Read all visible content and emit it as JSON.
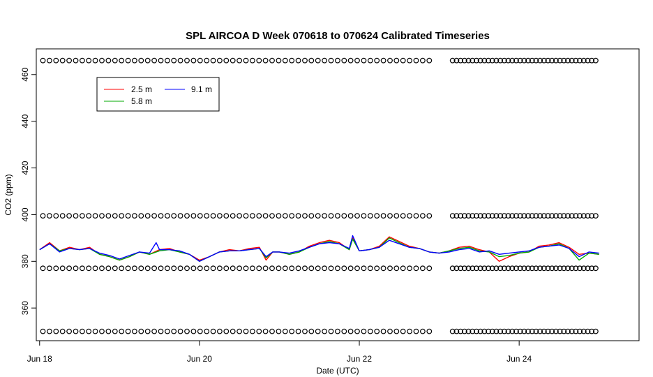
{
  "chart_data": {
    "type": "line",
    "title": "SPL AIRCOA D  Week 070618 to 070624  Calibrated Timeseries",
    "xlabel": "Date (UTC)",
    "ylabel": "CO2 (ppm)",
    "xlim": [
      "2007-06-17 23:00",
      "2007-06-25 12:00"
    ],
    "ylim": [
      346,
      471
    ],
    "x_ticks": [
      {
        "label": "Jun 18",
        "x": "2007-06-18"
      },
      {
        "label": "Jun 20",
        "x": "2007-06-20"
      },
      {
        "label": "Jun 22",
        "x": "2007-06-22"
      },
      {
        "label": "Jun 24",
        "x": "2007-06-24"
      }
    ],
    "y_ticks": [
      360,
      380,
      400,
      420,
      440,
      460
    ],
    "grid": false,
    "legend": {
      "placement": "top-left",
      "entries": [
        {
          "name": "2.5 m",
          "color": "#ff0000"
        },
        {
          "name": "5.8 m",
          "color": "#00aa00"
        },
        {
          "name": "9.1 m",
          "color": "#0000ff"
        }
      ]
    },
    "series": [
      {
        "name": "2.5 m",
        "color": "#ff0000",
        "points": [
          [
            "2007-06-18 00:00",
            385.0
          ],
          [
            "2007-06-18 03:00",
            388.0
          ],
          [
            "2007-06-18 06:00",
            384.5
          ],
          [
            "2007-06-18 09:00",
            386.0
          ],
          [
            "2007-06-18 12:00",
            385.0
          ],
          [
            "2007-06-18 15:00",
            386.0
          ],
          [
            "2007-06-18 18:00",
            383.0
          ],
          [
            "2007-06-18 21:00",
            382.0
          ],
          [
            "2007-06-19 00:00",
            380.5
          ],
          [
            "2007-06-19 03:00",
            382.0
          ],
          [
            "2007-06-19 06:00",
            384.0
          ],
          [
            "2007-06-19 09:00",
            383.0
          ],
          [
            "2007-06-19 12:00",
            385.0
          ],
          [
            "2007-06-19 15:00",
            385.5
          ],
          [
            "2007-06-19 18:00",
            384.0
          ],
          [
            "2007-06-19 21:00",
            383.0
          ],
          [
            "2007-06-20 00:00",
            380.5
          ],
          [
            "2007-06-20 03:00",
            382.0
          ],
          [
            "2007-06-20 06:00",
            384.0
          ],
          [
            "2007-06-20 09:00",
            385.0
          ],
          [
            "2007-06-20 12:00",
            384.5
          ],
          [
            "2007-06-20 15:00",
            385.5
          ],
          [
            "2007-06-20 18:00",
            386.0
          ],
          [
            "2007-06-20 20:00",
            380.5
          ],
          [
            "2007-06-20 22:00",
            384.0
          ],
          [
            "2007-06-21 00:00",
            384.0
          ],
          [
            "2007-06-21 03:00",
            383.0
          ],
          [
            "2007-06-21 06:00",
            384.0
          ],
          [
            "2007-06-21 09:00",
            386.5
          ],
          [
            "2007-06-21 12:00",
            388.0
          ],
          [
            "2007-06-21 15:00",
            389.0
          ],
          [
            "2007-06-21 18:00",
            388.0
          ],
          [
            "2007-06-21 21:00",
            385.0
          ],
          [
            "2007-06-21 22:00",
            390.0
          ],
          [
            "2007-06-22 00:00",
            384.5
          ],
          [
            "2007-06-22 03:00",
            385.0
          ],
          [
            "2007-06-22 06:00",
            386.5
          ],
          [
            "2007-06-22 09:00",
            390.5
          ],
          [
            "2007-06-22 12:00",
            388.5
          ],
          [
            "2007-06-22 15:00",
            386.5
          ],
          [
            "2007-06-22 18:00",
            385.5
          ],
          [
            "2007-06-22 21:00",
            384.0
          ],
          [
            "2007-06-23 00:00",
            383.5
          ],
          [
            "2007-06-23 03:00",
            384.5
          ],
          [
            "2007-06-23 06:00",
            386.0
          ],
          [
            "2007-06-23 09:00",
            386.5
          ],
          [
            "2007-06-23 12:00",
            385.0
          ],
          [
            "2007-06-23 15:00",
            384.0
          ],
          [
            "2007-06-23 18:00",
            380.0
          ],
          [
            "2007-06-23 21:00",
            382.0
          ],
          [
            "2007-06-24 00:00",
            383.5
          ],
          [
            "2007-06-24 03:00",
            384.0
          ],
          [
            "2007-06-24 06:00",
            386.5
          ],
          [
            "2007-06-24 09:00",
            387.0
          ],
          [
            "2007-06-24 12:00",
            388.0
          ],
          [
            "2007-06-24 15:00",
            386.0
          ],
          [
            "2007-06-24 18:00",
            383.0
          ],
          [
            "2007-06-24 21:00",
            383.5
          ],
          [
            "2007-06-25 00:00",
            383.0
          ]
        ]
      },
      {
        "name": "5.8 m",
        "color": "#00aa00",
        "points": [
          [
            "2007-06-18 00:00",
            385.0
          ],
          [
            "2007-06-18 03:00",
            387.5
          ],
          [
            "2007-06-18 06:00",
            384.5
          ],
          [
            "2007-06-18 09:00",
            385.5
          ],
          [
            "2007-06-18 12:00",
            385.0
          ],
          [
            "2007-06-18 15:00",
            385.5
          ],
          [
            "2007-06-18 18:00",
            383.0
          ],
          [
            "2007-06-18 21:00",
            382.0
          ],
          [
            "2007-06-19 00:00",
            380.5
          ],
          [
            "2007-06-19 03:00",
            382.0
          ],
          [
            "2007-06-19 06:00",
            384.0
          ],
          [
            "2007-06-19 09:00",
            383.0
          ],
          [
            "2007-06-19 12:00",
            384.5
          ],
          [
            "2007-06-19 15:00",
            385.0
          ],
          [
            "2007-06-19 18:00",
            384.0
          ],
          [
            "2007-06-19 21:00",
            383.0
          ],
          [
            "2007-06-20 00:00",
            380.0
          ],
          [
            "2007-06-20 03:00",
            382.0
          ],
          [
            "2007-06-20 06:00",
            384.0
          ],
          [
            "2007-06-20 09:00",
            384.5
          ],
          [
            "2007-06-20 12:00",
            384.5
          ],
          [
            "2007-06-20 15:00",
            385.0
          ],
          [
            "2007-06-20 18:00",
            385.5
          ],
          [
            "2007-06-20 20:00",
            381.5
          ],
          [
            "2007-06-20 22:00",
            384.0
          ],
          [
            "2007-06-21 00:00",
            384.0
          ],
          [
            "2007-06-21 03:00",
            383.0
          ],
          [
            "2007-06-21 06:00",
            384.0
          ],
          [
            "2007-06-21 09:00",
            386.0
          ],
          [
            "2007-06-21 12:00",
            387.5
          ],
          [
            "2007-06-21 15:00",
            388.5
          ],
          [
            "2007-06-21 18:00",
            387.5
          ],
          [
            "2007-06-21 21:00",
            385.0
          ],
          [
            "2007-06-21 22:00",
            389.5
          ],
          [
            "2007-06-22 00:00",
            384.5
          ],
          [
            "2007-06-22 03:00",
            385.0
          ],
          [
            "2007-06-22 06:00",
            386.0
          ],
          [
            "2007-06-22 09:00",
            390.0
          ],
          [
            "2007-06-22 12:00",
            388.0
          ],
          [
            "2007-06-22 15:00",
            386.0
          ],
          [
            "2007-06-22 18:00",
            385.5
          ],
          [
            "2007-06-22 21:00",
            384.0
          ],
          [
            "2007-06-23 00:00",
            383.5
          ],
          [
            "2007-06-23 03:00",
            384.5
          ],
          [
            "2007-06-23 06:00",
            385.5
          ],
          [
            "2007-06-23 09:00",
            386.0
          ],
          [
            "2007-06-23 12:00",
            384.5
          ],
          [
            "2007-06-23 15:00",
            384.0
          ],
          [
            "2007-06-23 18:00",
            382.0
          ],
          [
            "2007-06-23 21:00",
            382.5
          ],
          [
            "2007-06-24 00:00",
            383.5
          ],
          [
            "2007-06-24 03:00",
            384.0
          ],
          [
            "2007-06-24 06:00",
            386.0
          ],
          [
            "2007-06-24 09:00",
            386.5
          ],
          [
            "2007-06-24 12:00",
            387.5
          ],
          [
            "2007-06-24 15:00",
            385.5
          ],
          [
            "2007-06-24 18:00",
            380.5
          ],
          [
            "2007-06-24 21:00",
            383.5
          ],
          [
            "2007-06-25 00:00",
            383.0
          ]
        ]
      },
      {
        "name": "9.1 m",
        "color": "#0000ff",
        "points": [
          [
            "2007-06-18 00:00",
            385.0
          ],
          [
            "2007-06-18 03:00",
            387.5
          ],
          [
            "2007-06-18 06:00",
            384.0
          ],
          [
            "2007-06-18 09:00",
            385.5
          ],
          [
            "2007-06-18 12:00",
            385.0
          ],
          [
            "2007-06-18 15:00",
            385.5
          ],
          [
            "2007-06-18 18:00",
            383.5
          ],
          [
            "2007-06-18 21:00",
            382.5
          ],
          [
            "2007-06-19 00:00",
            381.0
          ],
          [
            "2007-06-19 03:00",
            382.5
          ],
          [
            "2007-06-19 06:00",
            384.0
          ],
          [
            "2007-06-19 09:00",
            383.5
          ],
          [
            "2007-06-19 11:00",
            388.0
          ],
          [
            "2007-06-19 12:00",
            385.0
          ],
          [
            "2007-06-19 15:00",
            385.0
          ],
          [
            "2007-06-19 18:00",
            384.5
          ],
          [
            "2007-06-19 21:00",
            383.0
          ],
          [
            "2007-06-20 00:00",
            380.0
          ],
          [
            "2007-06-20 03:00",
            382.0
          ],
          [
            "2007-06-20 06:00",
            384.0
          ],
          [
            "2007-06-20 09:00",
            384.5
          ],
          [
            "2007-06-20 12:00",
            384.5
          ],
          [
            "2007-06-20 15:00",
            385.0
          ],
          [
            "2007-06-20 18:00",
            385.5
          ],
          [
            "2007-06-20 20:00",
            382.0
          ],
          [
            "2007-06-20 22:00",
            384.0
          ],
          [
            "2007-06-21 00:00",
            384.0
          ],
          [
            "2007-06-21 03:00",
            383.5
          ],
          [
            "2007-06-21 06:00",
            384.5
          ],
          [
            "2007-06-21 09:00",
            386.0
          ],
          [
            "2007-06-21 12:00",
            387.5
          ],
          [
            "2007-06-21 15:00",
            388.0
          ],
          [
            "2007-06-21 18:00",
            387.5
          ],
          [
            "2007-06-21 21:00",
            385.5
          ],
          [
            "2007-06-21 22:00",
            391.0
          ],
          [
            "2007-06-22 00:00",
            384.5
          ],
          [
            "2007-06-22 03:00",
            385.0
          ],
          [
            "2007-06-22 06:00",
            386.0
          ],
          [
            "2007-06-22 09:00",
            389.0
          ],
          [
            "2007-06-22 12:00",
            387.5
          ],
          [
            "2007-06-22 15:00",
            386.0
          ],
          [
            "2007-06-22 18:00",
            385.5
          ],
          [
            "2007-06-22 21:00",
            384.0
          ],
          [
            "2007-06-23 00:00",
            383.5
          ],
          [
            "2007-06-23 03:00",
            384.0
          ],
          [
            "2007-06-23 06:00",
            385.0
          ],
          [
            "2007-06-23 09:00",
            385.5
          ],
          [
            "2007-06-23 12:00",
            384.0
          ],
          [
            "2007-06-23 15:00",
            384.5
          ],
          [
            "2007-06-23 18:00",
            383.0
          ],
          [
            "2007-06-23 21:00",
            383.5
          ],
          [
            "2007-06-24 00:00",
            384.0
          ],
          [
            "2007-06-24 03:00",
            384.5
          ],
          [
            "2007-06-24 06:00",
            386.0
          ],
          [
            "2007-06-24 09:00",
            386.5
          ],
          [
            "2007-06-24 12:00",
            387.0
          ],
          [
            "2007-06-24 15:00",
            385.5
          ],
          [
            "2007-06-24 18:00",
            382.0
          ],
          [
            "2007-06-24 21:00",
            384.0
          ],
          [
            "2007-06-25 00:00",
            383.5
          ]
        ]
      }
    ],
    "calibration_points": {
      "marker": "open-circle",
      "color": "#000000",
      "levels": [
        466,
        399.5,
        377,
        350
      ],
      "segments": [
        {
          "start": "2007-06-18 01:00",
          "end": "2007-06-22 21:00"
        },
        {
          "start": "2007-06-23 04:00",
          "end": "2007-06-24 23:00"
        }
      ],
      "count_per_segment": [
        60,
        37
      ]
    }
  }
}
